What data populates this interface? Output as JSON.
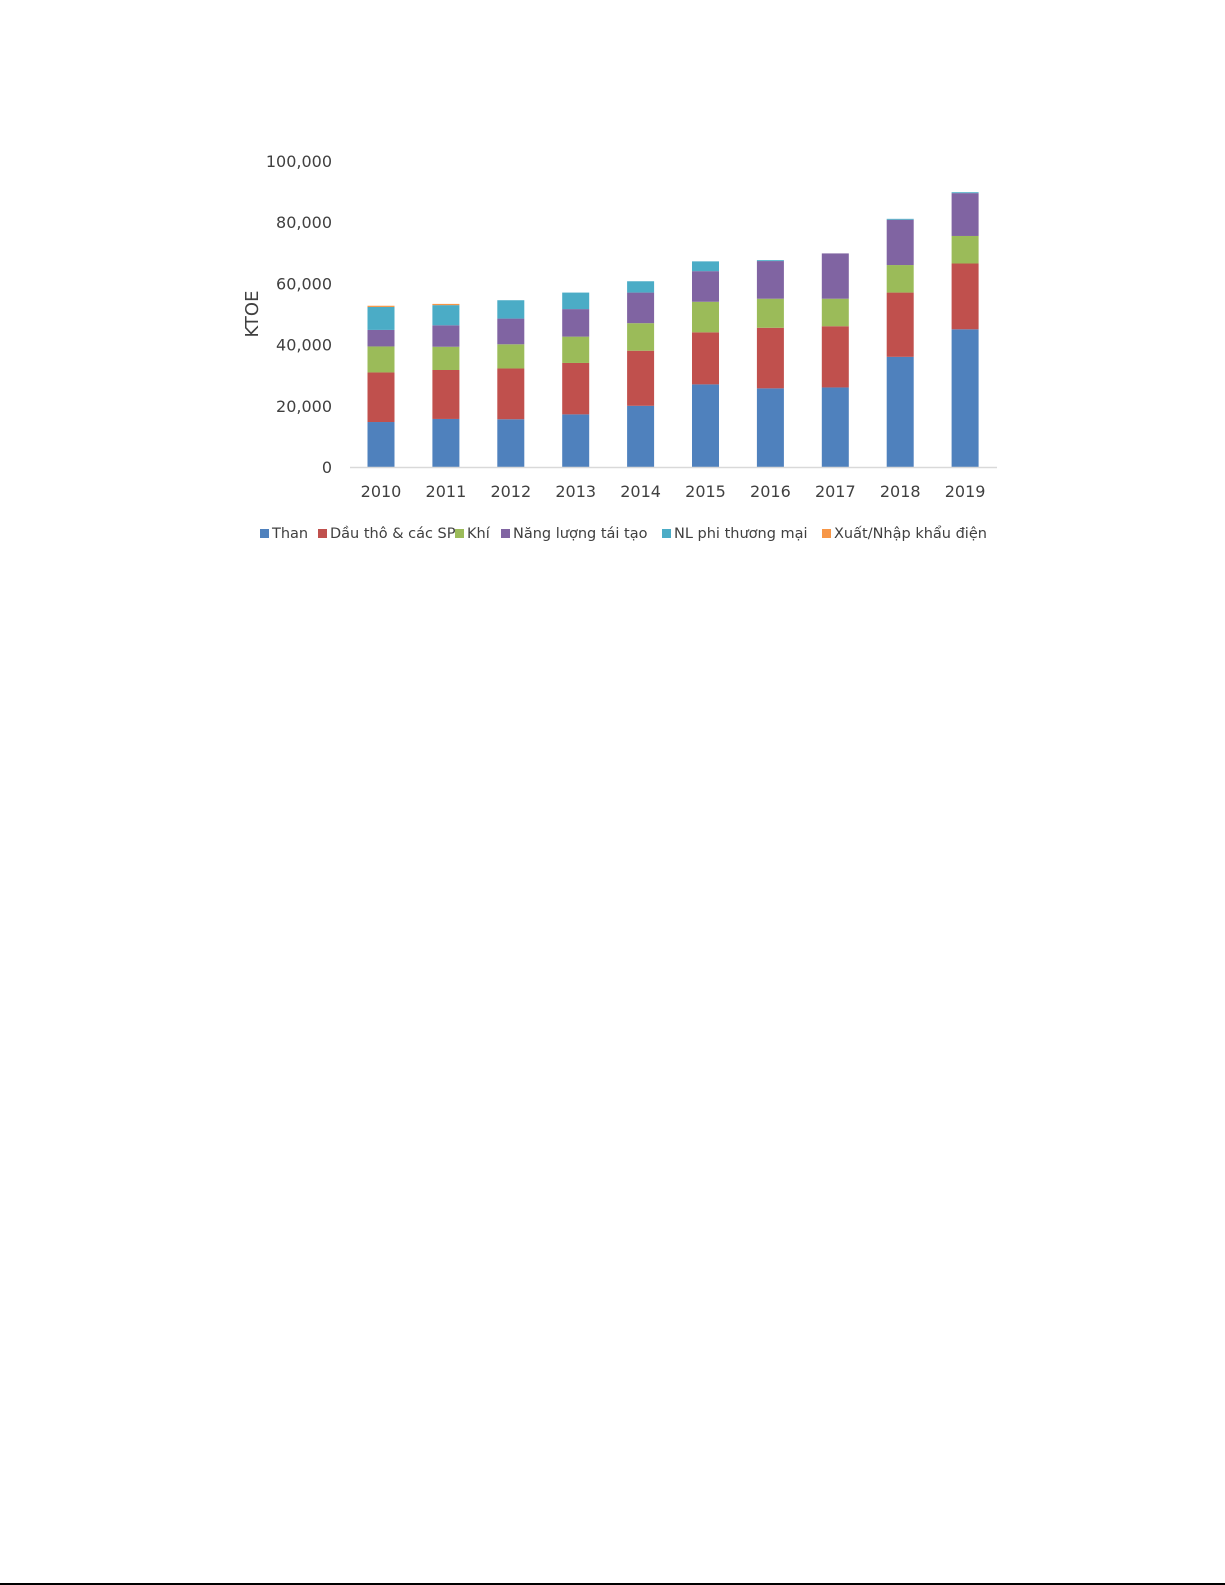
{
  "chart_data": {
    "type": "bar",
    "stacked": true,
    "categories": [
      "2010",
      "2011",
      "2012",
      "2013",
      "2014",
      "2015",
      "2016",
      "2017",
      "2018",
      "2019"
    ],
    "series": [
      {
        "name": "Than",
        "color": "#4F81BD",
        "values": [
          14700,
          15700,
          15600,
          17200,
          20000,
          27000,
          25700,
          26000,
          36000,
          45000
        ]
      },
      {
        "name": "Dầu thô & các SP",
        "color": "#C0504D",
        "values": [
          16200,
          16000,
          16600,
          16800,
          18000,
          17000,
          19800,
          20000,
          21000,
          21500
        ]
      },
      {
        "name": "Khí",
        "color": "#9BBB59",
        "values": [
          8500,
          7600,
          7900,
          8600,
          9000,
          10000,
          9500,
          9000,
          9000,
          9000
        ]
      },
      {
        "name": "Năng lượng tái tạo",
        "color": "#8064A2",
        "values": [
          5400,
          7000,
          8400,
          9000,
          10000,
          10000,
          12300,
          14800,
          14800,
          14000
        ]
      },
      {
        "name": "NL phi thương mại",
        "color": "#4BACC6",
        "values": [
          7500,
          6600,
          6000,
          5400,
          3700,
          3200,
          300,
          0,
          300,
          300
        ]
      },
      {
        "name": "Xuất/Nhập khẩu điện",
        "color": "#F79646",
        "values": [
          400,
          400,
          0,
          0,
          0,
          0,
          0,
          0,
          0,
          0
        ]
      }
    ],
    "ylabel": "KTOE",
    "xlabel": "",
    "title": "",
    "ylim": [
      0,
      100000
    ],
    "yticks": [
      "0",
      "20,000",
      "40,000",
      "60,000",
      "80,000",
      "100,000"
    ],
    "grid": false,
    "legend_position": "bottom"
  }
}
